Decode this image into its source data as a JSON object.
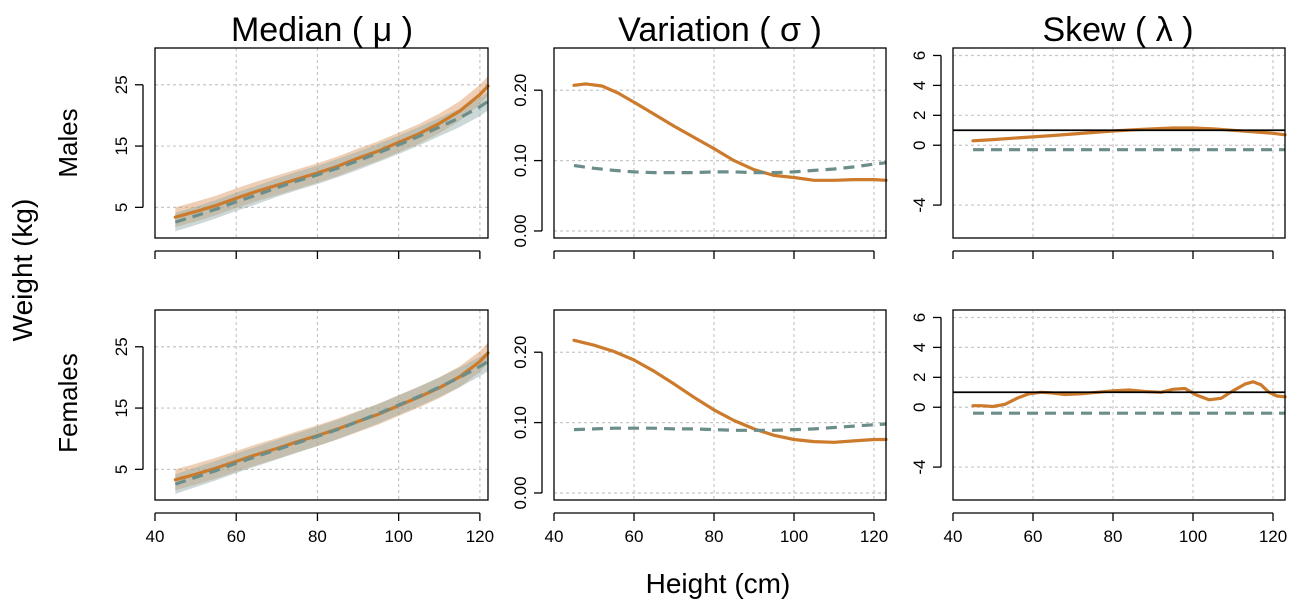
{
  "figure": {
    "column_titles": [
      "Median ( μ )",
      "Variation ( σ )",
      "Skew ( λ )"
    ],
    "row_labels": [
      "Males",
      "Females"
    ],
    "y_axis_title": "Weight (kg)",
    "x_axis_title": "Height (cm)"
  },
  "colors": {
    "orange": "#CC7A2B",
    "orange_band": "#D9955A",
    "teal": "#6B8E8A",
    "teal_band": "#8FA9A6",
    "grid": "#c8c8c8"
  },
  "chart_data": [
    {
      "type": "line",
      "row": "Males",
      "column": "Median ( μ )",
      "xlim": [
        40,
        122
      ],
      "ylim": [
        0,
        31
      ],
      "x_ticks": [
        40,
        60,
        80,
        100,
        120
      ],
      "x_tick_labels": [
        "",
        "",
        "",
        "",
        ""
      ],
      "y_ticks": [
        5,
        15,
        25
      ],
      "y_tick_labels": [
        "5",
        "15",
        "25"
      ],
      "grid": true,
      "series": [
        {
          "style": "solid",
          "color": "orange",
          "x": [
            45,
            50,
            55,
            60,
            65,
            70,
            75,
            80,
            85,
            90,
            95,
            100,
            105,
            110,
            115,
            120,
            122
          ],
          "y": [
            3.4,
            4.3,
            5.3,
            6.5,
            7.6,
            8.6,
            9.6,
            10.6,
            11.7,
            13.0,
            14.2,
            15.6,
            17.0,
            18.7,
            20.7,
            23.4,
            24.8
          ],
          "band": 1.6
        },
        {
          "style": "dashed",
          "color": "teal",
          "x": [
            45,
            50,
            55,
            60,
            65,
            70,
            75,
            80,
            85,
            90,
            95,
            100,
            105,
            110,
            115,
            120,
            122
          ],
          "y": [
            2.6,
            3.6,
            4.7,
            5.9,
            7.0,
            8.2,
            9.3,
            10.3,
            11.4,
            12.6,
            13.9,
            15.2,
            16.6,
            18.1,
            19.6,
            21.4,
            22.3
          ],
          "band": 1.5
        }
      ]
    },
    {
      "type": "line",
      "row": "Males",
      "column": "Variation ( σ )",
      "xlim": [
        40,
        123
      ],
      "ylim": [
        -0.01,
        0.26
      ],
      "x_ticks": [
        40,
        60,
        80,
        100,
        120
      ],
      "x_tick_labels": [
        "",
        "",
        "",
        "",
        ""
      ],
      "y_ticks": [
        0.0,
        0.1,
        0.2
      ],
      "y_tick_labels": [
        "0.00",
        "0.10",
        "0.20"
      ],
      "grid": true,
      "series": [
        {
          "style": "solid",
          "color": "orange",
          "x": [
            45,
            48,
            52,
            56,
            60,
            65,
            70,
            75,
            80,
            85,
            90,
            95,
            100,
            105,
            110,
            115,
            120,
            123
          ],
          "y": [
            0.207,
            0.209,
            0.206,
            0.196,
            0.183,
            0.166,
            0.149,
            0.133,
            0.117,
            0.1,
            0.087,
            0.079,
            0.076,
            0.072,
            0.072,
            0.073,
            0.073,
            0.072
          ]
        },
        {
          "style": "dashed",
          "color": "teal",
          "x": [
            45,
            50,
            55,
            60,
            65,
            70,
            75,
            80,
            85,
            90,
            95,
            100,
            105,
            110,
            115,
            120,
            123
          ],
          "y": [
            0.093,
            0.089,
            0.086,
            0.084,
            0.083,
            0.083,
            0.083,
            0.084,
            0.084,
            0.083,
            0.083,
            0.084,
            0.086,
            0.088,
            0.091,
            0.095,
            0.097
          ]
        }
      ]
    },
    {
      "type": "line",
      "row": "Males",
      "column": "Skew ( λ )",
      "xlim": [
        40,
        123
      ],
      "ylim": [
        -6.2,
        6.5
      ],
      "x_ticks": [
        40,
        60,
        80,
        100,
        120
      ],
      "x_tick_labels": [
        "",
        "",
        "",
        "",
        ""
      ],
      "y_ticks": [
        6,
        4,
        2,
        0,
        -4
      ],
      "y_tick_labels": [
        "6",
        "4",
        "2",
        "0",
        "-4"
      ],
      "grid": true,
      "reference_line": 1,
      "series": [
        {
          "style": "solid",
          "color": "orange",
          "x": [
            45,
            50,
            55,
            60,
            65,
            70,
            75,
            80,
            85,
            90,
            95,
            100,
            105,
            110,
            115,
            120,
            123
          ],
          "y": [
            0.3,
            0.38,
            0.47,
            0.56,
            0.65,
            0.75,
            0.85,
            0.95,
            1.03,
            1.1,
            1.15,
            1.15,
            1.1,
            1.0,
            0.9,
            0.8,
            0.7
          ]
        },
        {
          "style": "dashed",
          "color": "teal",
          "x": [
            45,
            123
          ],
          "y": [
            -0.3,
            -0.3
          ]
        }
      ]
    },
    {
      "type": "line",
      "row": "Females",
      "column": "Median ( μ )",
      "xlim": [
        40,
        122
      ],
      "ylim": [
        0,
        31
      ],
      "x_ticks": [
        40,
        60,
        80,
        100,
        120
      ],
      "x_tick_labels": [
        "40",
        "60",
        "80",
        "100",
        "120"
      ],
      "y_ticks": [
        5,
        15,
        25
      ],
      "y_tick_labels": [
        "5",
        "15",
        "25"
      ],
      "grid": true,
      "series": [
        {
          "style": "solid",
          "color": "orange",
          "x": [
            45,
            50,
            55,
            60,
            65,
            70,
            75,
            80,
            85,
            90,
            95,
            100,
            105,
            110,
            115,
            120,
            122
          ],
          "y": [
            3.3,
            4.2,
            5.2,
            6.3,
            7.4,
            8.4,
            9.5,
            10.5,
            11.6,
            12.8,
            14.0,
            15.4,
            16.8,
            18.3,
            20.1,
            22.6,
            24.0
          ],
          "band": 1.7
        },
        {
          "style": "dashed",
          "color": "teal",
          "x": [
            45,
            50,
            55,
            60,
            65,
            70,
            75,
            80,
            85,
            90,
            95,
            100,
            105,
            110,
            115,
            120,
            122
          ],
          "y": [
            2.6,
            3.7,
            4.8,
            6.0,
            7.1,
            8.2,
            9.3,
            10.4,
            11.5,
            12.8,
            14.1,
            15.5,
            16.9,
            18.4,
            20.0,
            21.8,
            22.6
          ],
          "band": 1.6
        }
      ]
    },
    {
      "type": "line",
      "row": "Females",
      "column": "Variation ( σ )",
      "xlim": [
        40,
        123
      ],
      "ylim": [
        -0.01,
        0.26
      ],
      "x_ticks": [
        40,
        60,
        80,
        100,
        120
      ],
      "x_tick_labels": [
        "40",
        "60",
        "80",
        "100",
        "120"
      ],
      "y_ticks": [
        0.0,
        0.1,
        0.2
      ],
      "y_tick_labels": [
        "0.00",
        "0.10",
        "0.20"
      ],
      "grid": true,
      "series": [
        {
          "style": "solid",
          "color": "orange",
          "x": [
            45,
            50,
            55,
            60,
            65,
            70,
            75,
            80,
            85,
            90,
            95,
            100,
            105,
            110,
            115,
            120,
            123
          ],
          "y": [
            0.217,
            0.21,
            0.201,
            0.189,
            0.173,
            0.155,
            0.136,
            0.118,
            0.103,
            0.091,
            0.082,
            0.076,
            0.073,
            0.072,
            0.074,
            0.076,
            0.076
          ]
        },
        {
          "style": "dashed",
          "color": "teal",
          "x": [
            45,
            50,
            55,
            60,
            65,
            70,
            75,
            80,
            85,
            90,
            95,
            100,
            105,
            110,
            115,
            120,
            123
          ],
          "y": [
            0.09,
            0.091,
            0.092,
            0.092,
            0.092,
            0.091,
            0.091,
            0.09,
            0.089,
            0.089,
            0.089,
            0.09,
            0.091,
            0.093,
            0.095,
            0.097,
            0.098
          ]
        }
      ]
    },
    {
      "type": "line",
      "row": "Females",
      "column": "Skew ( λ )",
      "xlim": [
        40,
        123
      ],
      "ylim": [
        -6.2,
        6.5
      ],
      "x_ticks": [
        40,
        60,
        80,
        100,
        120
      ],
      "x_tick_labels": [
        "40",
        "60",
        "80",
        "100",
        "120"
      ],
      "y_ticks": [
        6,
        4,
        2,
        0,
        -4
      ],
      "y_tick_labels": [
        "6",
        "4",
        "2",
        "0",
        "-4"
      ],
      "grid": true,
      "reference_line": 1,
      "series": [
        {
          "style": "solid",
          "color": "orange",
          "x": [
            45,
            47,
            50,
            53,
            56,
            59,
            62,
            65,
            68,
            72,
            76,
            80,
            84,
            88,
            92,
            95,
            98,
            101,
            104,
            107,
            110,
            113,
            115,
            117,
            119,
            121,
            123
          ],
          "y": [
            0.1,
            0.1,
            0.05,
            0.2,
            0.6,
            0.9,
            1.0,
            0.95,
            0.85,
            0.9,
            1.0,
            1.1,
            1.15,
            1.05,
            1.0,
            1.2,
            1.25,
            0.8,
            0.5,
            0.6,
            1.1,
            1.55,
            1.7,
            1.5,
            1.0,
            0.75,
            0.7
          ]
        },
        {
          "style": "dashed",
          "color": "teal",
          "x": [
            45,
            123
          ],
          "y": [
            -0.4,
            -0.4
          ]
        }
      ]
    }
  ]
}
